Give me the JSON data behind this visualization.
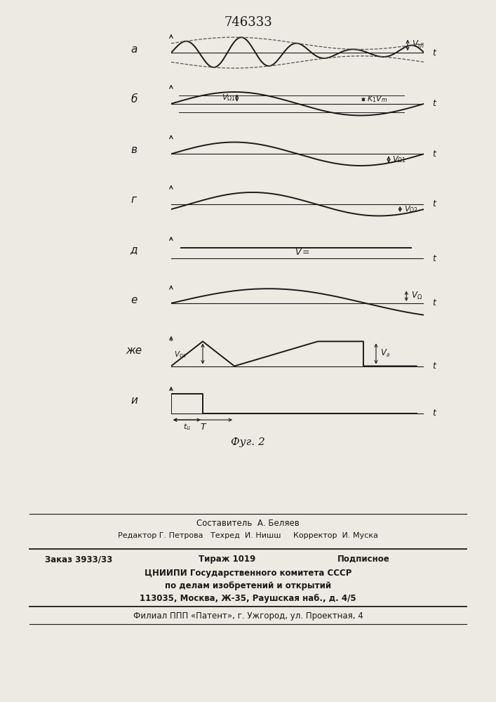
{
  "title": "746333",
  "fig_caption": "Фуг. 2",
  "bg_color": "#edeae3",
  "line_color": "#1a1a1a",
  "dashed_color": "#555555",
  "panel_labels": [
    "а",
    "б",
    "в",
    "г",
    "д",
    "е",
    "же",
    "и"
  ],
  "footer_author": "Составитель  А. Беляев",
  "footer_editors": "Редактор Г. Петрова   Техред  И. Нишш     Корректор  И. Муска",
  "footer_order": "Заказ 3933/33",
  "footer_print": "Тираж 1019",
  "footer_sub": "Подписное",
  "footer_org": "ЦНИИПИ Государственного комитета СССР",
  "footer_dept": "по делам изобретений и открытий",
  "footer_addr": "113035, Москва, Ж-35, Раушская наб., д. 4/5",
  "footer_branch": "Филиал ППП «Патент», г. Ужгород, ул. Проектная, 4"
}
